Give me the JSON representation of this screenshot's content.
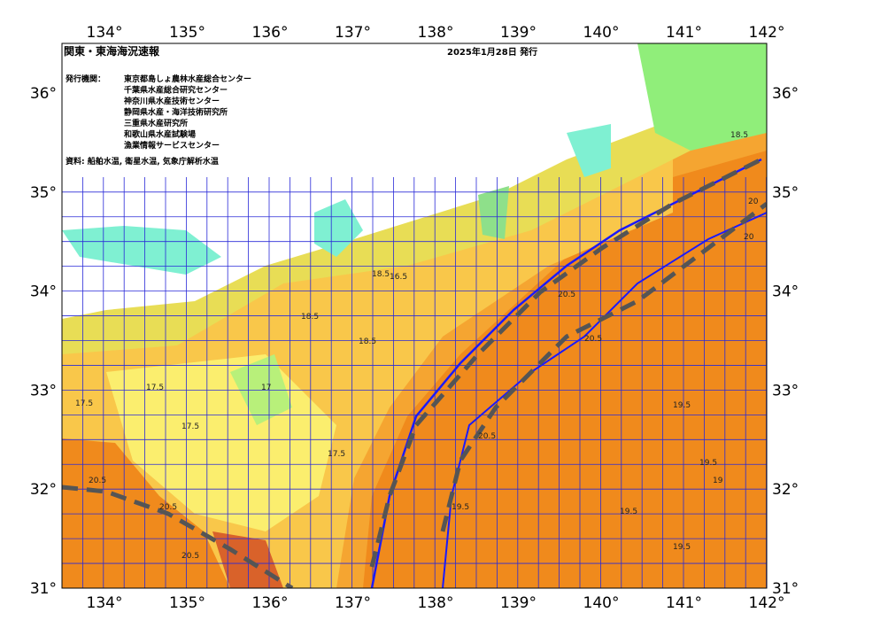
{
  "map": {
    "title": "関東・東海海況速報",
    "date": "2025年1月28日 発行",
    "issuers_label": "発行機関：",
    "issuers": [
      "東京都島しょ農林水産総合センター",
      "千葉県水産総合研究センター",
      "神奈川県水産技術センター",
      "静岡県水産・海洋技術研究所",
      "三重県水産研究所",
      "和歌山県水産試験場",
      "漁業情報サービスセンター"
    ],
    "source": "資料: 船舶水温, 衛星水温, 気象庁解析水温",
    "lon_labels": [
      "134°",
      "135°",
      "136°",
      "137°",
      "138°",
      "139°",
      "140°",
      "141°",
      "142°"
    ],
    "lat_labels": [
      "31°",
      "32°",
      "33°",
      "34°",
      "35°",
      "36°"
    ],
    "contour_labels": [
      "18.5",
      "17.5",
      "17.5",
      "17.5",
      "17.5",
      "18.5",
      "18.5",
      "20.5",
      "20.5",
      "20.5",
      "20.5",
      "20.5",
      "19.5",
      "19.5",
      "19.5",
      "19.5",
      "20",
      "20",
      "19",
      "18.5",
      "16.5",
      "17",
      "20.5",
      "19.5"
    ]
  }
}
